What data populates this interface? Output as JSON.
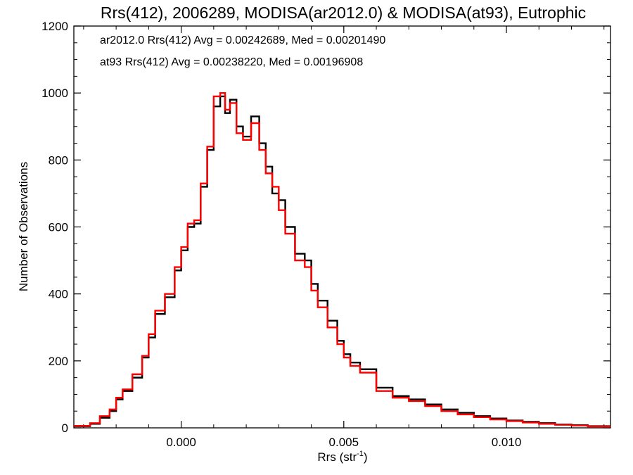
{
  "chart_data": {
    "type": "histogram",
    "title": "Rrs(412), 2006289, MODISA(ar2012.0) & MODISA(at93), Eutrophic",
    "xlabel_main": "Rrs (str",
    "xlabel_sup": "-1",
    "xlabel_close": ")",
    "ylabel": "Number of Observations",
    "xlim": [
      -0.0033,
      0.0132
    ],
    "ylim": [
      0,
      1200
    ],
    "x_ticks": [
      0.0,
      0.005,
      0.01
    ],
    "x_tick_labels": [
      "0.000",
      "0.005",
      "0.010"
    ],
    "y_ticks": [
      0,
      200,
      400,
      600,
      800,
      1000,
      1200
    ],
    "y_tick_labels": [
      "0",
      "200",
      "400",
      "600",
      "800",
      "1000",
      "1200"
    ],
    "annotations": [
      {
        "text": "ar2012.0 Rrs(412) Avg = 0.00242689, Med = 0.00201490",
        "color": "#000000"
      },
      {
        "text": "at93 Rrs(412) Avg = 0.00238220, Med = 0.00196908",
        "color": "#ff0000"
      }
    ],
    "series": [
      {
        "name": "ar2012.0",
        "color": "#000000",
        "bin_edges": [
          -0.0033,
          -0.0028,
          -0.0025,
          -0.0022,
          -0.002,
          -0.0018,
          -0.0015,
          -0.0012,
          -0.001,
          -0.0008,
          -0.0005,
          -0.0002,
          0.0,
          0.0002,
          0.0004,
          0.0006,
          0.0008,
          0.001,
          0.0012,
          0.00135,
          0.0015,
          0.0017,
          0.0019,
          0.00215,
          0.0024,
          0.0026,
          0.0028,
          0.003,
          0.0032,
          0.0035,
          0.0038,
          0.004,
          0.0042,
          0.0045,
          0.0048,
          0.005,
          0.0052,
          0.0055,
          0.006,
          0.0065,
          0.007,
          0.0075,
          0.008,
          0.0085,
          0.009,
          0.0095,
          0.01,
          0.0105,
          0.011,
          0.0115,
          0.012,
          0.0125,
          0.0132
        ],
        "counts": [
          5,
          12,
          30,
          50,
          85,
          110,
          150,
          210,
          270,
          340,
          390,
          470,
          530,
          600,
          610,
          720,
          830,
          960,
          990,
          940,
          980,
          900,
          870,
          930,
          850,
          780,
          700,
          680,
          600,
          520,
          500,
          430,
          380,
          320,
          260,
          220,
          195,
          175,
          120,
          95,
          85,
          70,
          55,
          45,
          35,
          28,
          22,
          18,
          14,
          10,
          8,
          5
        ]
      },
      {
        "name": "at93",
        "color": "#ff0000",
        "bin_edges": [
          -0.0033,
          -0.0028,
          -0.0025,
          -0.0022,
          -0.002,
          -0.0018,
          -0.0015,
          -0.0012,
          -0.001,
          -0.0008,
          -0.0005,
          -0.0002,
          0.0,
          0.0002,
          0.0004,
          0.0006,
          0.0008,
          0.001,
          0.0012,
          0.00135,
          0.0015,
          0.0017,
          0.0019,
          0.00215,
          0.0024,
          0.0026,
          0.0028,
          0.003,
          0.0032,
          0.0035,
          0.0038,
          0.004,
          0.0042,
          0.0045,
          0.0048,
          0.005,
          0.0052,
          0.0055,
          0.006,
          0.0065,
          0.007,
          0.0075,
          0.008,
          0.0085,
          0.009,
          0.0095,
          0.01,
          0.0105,
          0.011,
          0.0115,
          0.012,
          0.0125,
          0.0132
        ],
        "counts": [
          6,
          14,
          35,
          55,
          90,
          115,
          160,
          215,
          280,
          350,
          400,
          480,
          540,
          610,
          620,
          730,
          840,
          990,
          1000,
          950,
          970,
          880,
          860,
          910,
          830,
          760,
          720,
          650,
          580,
          500,
          480,
          410,
          360,
          300,
          250,
          210,
          185,
          165,
          110,
          90,
          80,
          65,
          50,
          40,
          32,
          25,
          20,
          16,
          12,
          9,
          7,
          4
        ]
      }
    ]
  }
}
